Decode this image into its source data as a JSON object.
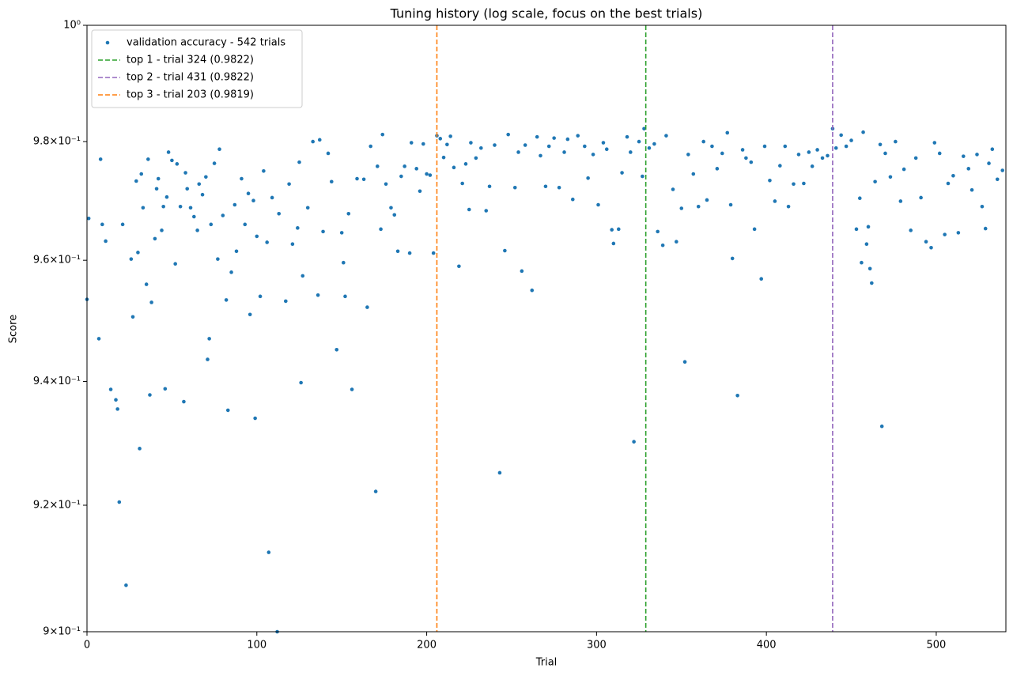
{
  "chart_data": {
    "type": "scatter",
    "title": "Tuning history (log scale, focus on the best trials)",
    "x_label": "Trial",
    "y_label": "Score",
    "xlim": [
      0,
      541
    ],
    "xticks": [
      0,
      100,
      200,
      300,
      400,
      500
    ],
    "ylim": [
      0.9,
      1
    ],
    "log_y": true,
    "yticks": [
      {
        "value": 0.9,
        "label": "9×10⁻¹"
      },
      {
        "value": 0.92,
        "label": "9.2×10⁻¹"
      },
      {
        "value": 0.94,
        "label": "9.4×10⁻¹"
      },
      {
        "value": 0.96,
        "label": "9.6×10⁻¹"
      },
      {
        "value": 0.98,
        "label": "9.8×10⁻¹"
      },
      {
        "value": 1,
        "label": "10⁰"
      }
    ],
    "legend": "upper left",
    "series": [
      {
        "name": "validation accuracy - 542 trials",
        "color": "#1f77b4",
        "x": [
          0,
          1,
          7,
          8,
          9,
          11,
          14,
          17,
          18,
          19,
          21,
          23,
          26,
          27,
          29,
          30,
          31,
          32,
          33,
          35,
          36,
          37,
          38,
          40,
          41,
          42,
          44,
          45,
          46,
          47,
          48,
          50,
          52,
          53,
          55,
          57,
          58,
          59,
          61,
          63,
          65,
          66,
          68,
          70,
          71,
          72,
          73,
          75,
          77,
          78,
          80,
          82,
          83,
          85,
          87,
          88,
          91,
          93,
          95,
          96,
          98,
          99,
          100,
          102,
          104,
          106,
          107,
          109,
          112,
          113,
          117,
          119,
          121,
          124,
          125,
          126,
          127,
          130,
          133,
          136,
          137,
          139,
          142,
          144,
          147,
          150,
          151,
          152,
          154,
          156,
          159,
          163,
          165,
          167,
          170,
          171,
          173,
          174,
          176,
          179,
          181,
          183,
          185,
          187,
          190,
          191,
          194,
          196,
          198,
          200,
          202,
          204,
          206,
          208,
          210,
          212,
          214,
          216,
          219,
          221,
          223,
          225,
          226,
          229,
          232,
          235,
          237,
          240,
          243,
          246,
          248,
          252,
          254,
          256,
          258,
          262,
          265,
          267,
          270,
          272,
          275,
          278,
          281,
          283,
          286,
          289,
          293,
          295,
          298,
          301,
          304,
          306,
          309,
          310,
          313,
          315,
          318,
          320,
          322,
          325,
          327,
          328,
          331,
          334,
          336,
          339,
          341,
          345,
          347,
          350,
          352,
          354,
          357,
          360,
          363,
          365,
          368,
          371,
          374,
          377,
          379,
          380,
          383,
          386,
          388,
          391,
          393,
          397,
          399,
          402,
          405,
          408,
          411,
          413,
          416,
          419,
          422,
          425,
          427,
          430,
          433,
          436,
          439,
          441,
          444,
          447,
          450,
          453,
          455,
          456,
          457,
          459,
          460,
          461,
          462,
          464,
          467,
          468,
          470,
          473,
          476,
          479,
          481,
          485,
          488,
          491,
          494,
          497,
          499,
          502,
          505,
          507,
          510,
          513,
          516,
          519,
          521,
          524,
          527,
          529,
          531,
          533,
          536,
          539
        ],
        "y": [
          0.9535,
          0.967,
          0.947,
          0.977,
          0.966,
          0.9632,
          0.9387,
          0.937,
          0.9355,
          0.9205,
          0.966,
          0.9073,
          0.9602,
          0.9506,
          0.9733,
          0.9613,
          0.9291,
          0.9745,
          0.9688,
          0.956,
          0.977,
          0.9378,
          0.953,
          0.9636,
          0.972,
          0.9737,
          0.965,
          0.969,
          0.9388,
          0.9706,
          0.9782,
          0.9768,
          0.9594,
          0.9762,
          0.969,
          0.9367,
          0.9747,
          0.972,
          0.9688,
          0.9673,
          0.965,
          0.9728,
          0.971,
          0.974,
          0.9436,
          0.947,
          0.966,
          0.9763,
          0.9602,
          0.9787,
          0.9675,
          0.9534,
          0.9353,
          0.958,
          0.9693,
          0.9615,
          0.9737,
          0.966,
          0.9712,
          0.951,
          0.97,
          0.934,
          0.964,
          0.954,
          0.975,
          0.963,
          0.9125,
          0.9705,
          0.9,
          0.9678,
          0.9532,
          0.9728,
          0.9627,
          0.9654,
          0.9765,
          0.9398,
          0.9574,
          0.9688,
          0.98,
          0.9542,
          0.9803,
          0.9648,
          0.978,
          0.9732,
          0.9452,
          0.9646,
          0.9596,
          0.954,
          0.9678,
          0.9387,
          0.9737,
          0.9736,
          0.9522,
          0.9792,
          0.9222,
          0.9758,
          0.9652,
          0.9812,
          0.9728,
          0.9688,
          0.9676,
          0.9615,
          0.9741,
          0.9758,
          0.9612,
          0.9798,
          0.9754,
          0.9716,
          0.9796,
          0.9745,
          0.9743,
          0.9612,
          0.981,
          0.9805,
          0.9773,
          0.9795,
          0.9809,
          0.9756,
          0.959,
          0.9729,
          0.9762,
          0.9685,
          0.9798,
          0.9772,
          0.9789,
          0.9683,
          0.9724,
          0.9794,
          0.9252,
          0.9616,
          0.9812,
          0.9722,
          0.9782,
          0.9582,
          0.9794,
          0.955,
          0.9808,
          0.9776,
          0.9724,
          0.9792,
          0.9806,
          0.9722,
          0.9782,
          0.9804,
          0.9702,
          0.981,
          0.9792,
          0.9738,
          0.9778,
          0.9693,
          0.9798,
          0.9787,
          0.9651,
          0.9628,
          0.9652,
          0.9747,
          0.9808,
          0.9782,
          0.9302,
          0.98,
          0.9741,
          0.9822,
          0.9789,
          0.9796,
          0.9648,
          0.9625,
          0.981,
          0.9719,
          0.9631,
          0.9687,
          0.9432,
          0.9778,
          0.9745,
          0.969,
          0.98,
          0.9701,
          0.9792,
          0.9754,
          0.978,
          0.9815,
          0.9693,
          0.9603,
          0.9377,
          0.9786,
          0.9772,
          0.9765,
          0.9652,
          0.9569,
          0.9792,
          0.9734,
          0.9699,
          0.9759,
          0.9792,
          0.969,
          0.9728,
          0.9778,
          0.9729,
          0.9782,
          0.9758,
          0.9786,
          0.9772,
          0.9776,
          0.9822,
          0.9789,
          0.9811,
          0.9792,
          0.9802,
          0.9652,
          0.9704,
          0.9596,
          0.9816,
          0.9627,
          0.9656,
          0.9586,
          0.9562,
          0.9732,
          0.9795,
          0.9327,
          0.978,
          0.974,
          0.98,
          0.9699,
          0.9753,
          0.965,
          0.9772,
          0.9705,
          0.9631,
          0.9621,
          0.9798,
          0.978,
          0.9643,
          0.9729,
          0.9742,
          0.9646,
          0.9775,
          0.9754,
          0.9718,
          0.9778,
          0.969,
          0.9653,
          0.9763,
          0.9787,
          0.9736,
          0.9751
        ]
      }
    ],
    "vlines": [
      {
        "x": 329,
        "label": "top 1 - trial 324 (0.9822)",
        "color": "#2ca02c"
      },
      {
        "x": 439,
        "label": "top 2 - trial 431 (0.9822)",
        "color": "#9467bd"
      },
      {
        "x": 206,
        "label": "top 3 - trial 203 (0.9819)",
        "color": "#ff7f0e"
      }
    ]
  }
}
